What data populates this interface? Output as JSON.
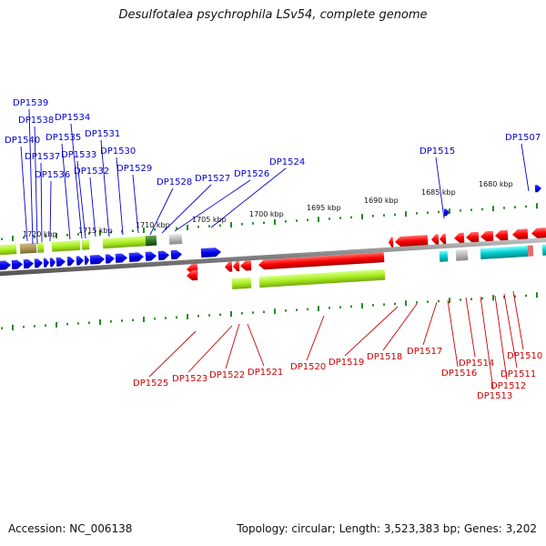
{
  "title": "Desulfotalea psychrophila LSv54, complete genome",
  "footer": {
    "accession": "Accession: NC_006138",
    "summary": "Topology: circular; Length: 3,523,383 bp; Genes: 3,202"
  },
  "colors": {
    "forward_label": "#0000cc",
    "reverse_label": "#cc0000",
    "forward_gene": "#0000ee",
    "reverse_gene": "#ff0000",
    "backbone": "#808080",
    "tick": "#228B22",
    "cog_green": "#aaee22",
    "cog_cyan": "#00cccc",
    "cog_gray": "#b8b8b8",
    "cog_olive": "#aa9955",
    "cog_darkgreen": "#337722"
  },
  "scale_labels": [
    {
      "text": "1720 kbp"
    },
    {
      "text": "1715 kbp"
    },
    {
      "text": "1710 kbp"
    },
    {
      "text": "1705 kbp"
    },
    {
      "text": "1700 kbp"
    },
    {
      "text": "1695 kbp"
    },
    {
      "text": "1690 kbp"
    },
    {
      "text": "1685 kbp"
    },
    {
      "text": "1680 kbp"
    }
  ],
  "forward_genes": [
    {
      "label": "DP1539"
    },
    {
      "label": "DP1538"
    },
    {
      "label": "DP1534"
    },
    {
      "label": "DP1540"
    },
    {
      "label": "DP1535"
    },
    {
      "label": "DP1531"
    },
    {
      "label": "DP1537"
    },
    {
      "label": "DP1533"
    },
    {
      "label": "DP1530"
    },
    {
      "label": "DP1536"
    },
    {
      "label": "DP1532"
    },
    {
      "label": "DP1529"
    },
    {
      "label": "DP1528"
    },
    {
      "label": "DP1527"
    },
    {
      "label": "DP1526"
    },
    {
      "label": "DP1524"
    },
    {
      "label": "DP1515"
    },
    {
      "label": "DP1507"
    }
  ],
  "reverse_genes": [
    {
      "label": "DP1525"
    },
    {
      "label": "DP1523"
    },
    {
      "label": "DP1522"
    },
    {
      "label": "DP1521"
    },
    {
      "label": "DP1520"
    },
    {
      "label": "DP1519"
    },
    {
      "label": "DP1518"
    },
    {
      "label": "DP1517"
    },
    {
      "label": "DP1516"
    },
    {
      "label": "DP1514"
    },
    {
      "label": "DP1513"
    },
    {
      "label": "DP1512"
    },
    {
      "label": "DP1511"
    },
    {
      "label": "DP1510"
    }
  ]
}
